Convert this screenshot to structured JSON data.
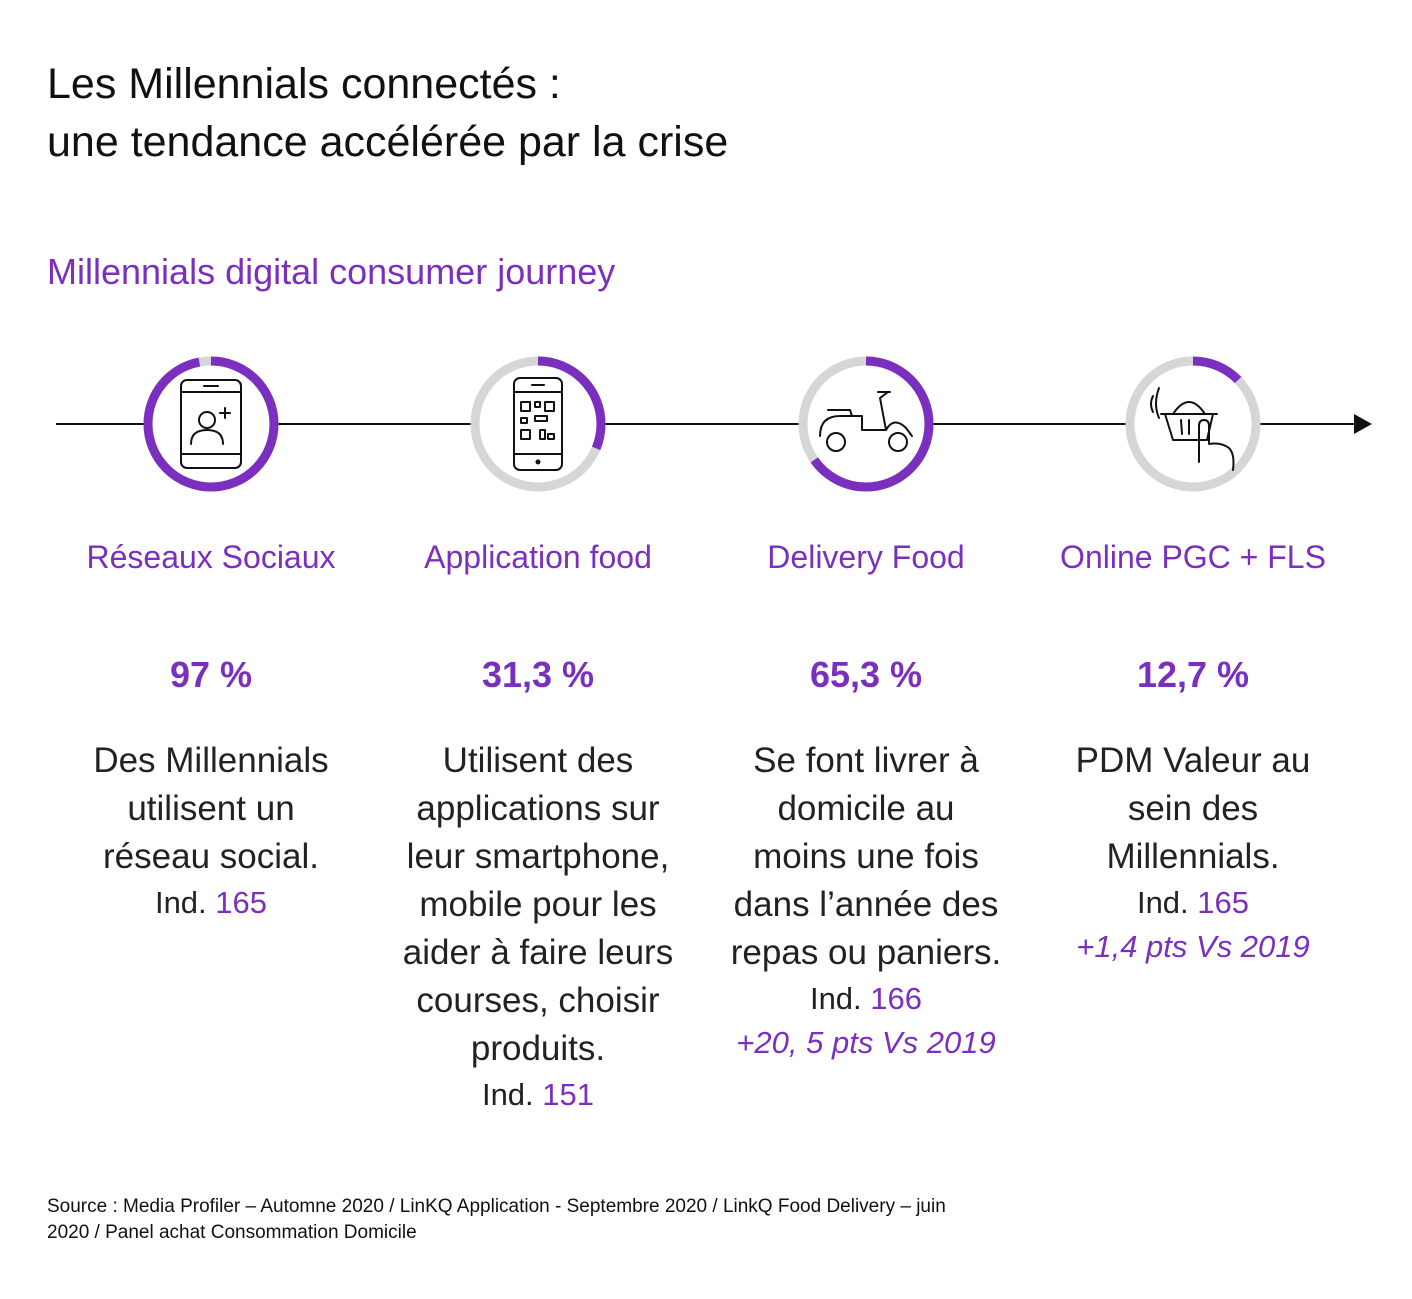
{
  "header": {
    "title_line1": "Les Millennials connectés :",
    "title_line2": "une tendance accélérée par la crise",
    "subtitle": "Millennials digital consumer journey"
  },
  "colors": {
    "accent": "#7b2fbe",
    "ring_track": "#d6d6d6",
    "line": "#111111"
  },
  "chart_data": {
    "type": "donut-progress",
    "title": "Millennials digital consumer journey",
    "unit": "%",
    "categories": [
      "Réseaux Sociaux",
      "Application food",
      "Delivery Food",
      "Online PGC + FLS"
    ],
    "values": [
      97,
      31.3,
      65.3,
      12.7
    ],
    "value_labels": [
      "97 %",
      "31,3 %",
      "65,3 %",
      "12,7 %"
    ],
    "icons": [
      "smartphone-add-contact-icon",
      "smartphone-qr-code-icon",
      "scooter-icon",
      "basket-tap-icon"
    ],
    "descriptions": [
      [
        "Des Millennials",
        "utilisent un",
        "réseau social."
      ],
      [
        "Utilisent des",
        "applications sur",
        "leur smartphone,",
        "mobile pour les",
        "aider à faire leurs",
        "courses, choisir",
        "produits."
      ],
      [
        "Se font livrer à",
        "domicile au",
        "moins une fois",
        "dans l’année des",
        "repas ou paniers."
      ],
      [
        "PDM Valeur au",
        "sein des",
        "Millennials."
      ]
    ],
    "index_label": "Ind.",
    "index_values": [
      "165",
      "151",
      "166",
      "165"
    ],
    "deltas": [
      "",
      "",
      "+20, 5 pts Vs 2019",
      "+1,4 pts Vs 2019"
    ]
  },
  "footer": {
    "source_line1": "Source : Media Profiler – Automne 2020 / LinKQ Application - Septembre 2020 / LinkQ Food Delivery – juin",
    "source_line2": "2020 / Panel achat Consommation Domicile"
  }
}
